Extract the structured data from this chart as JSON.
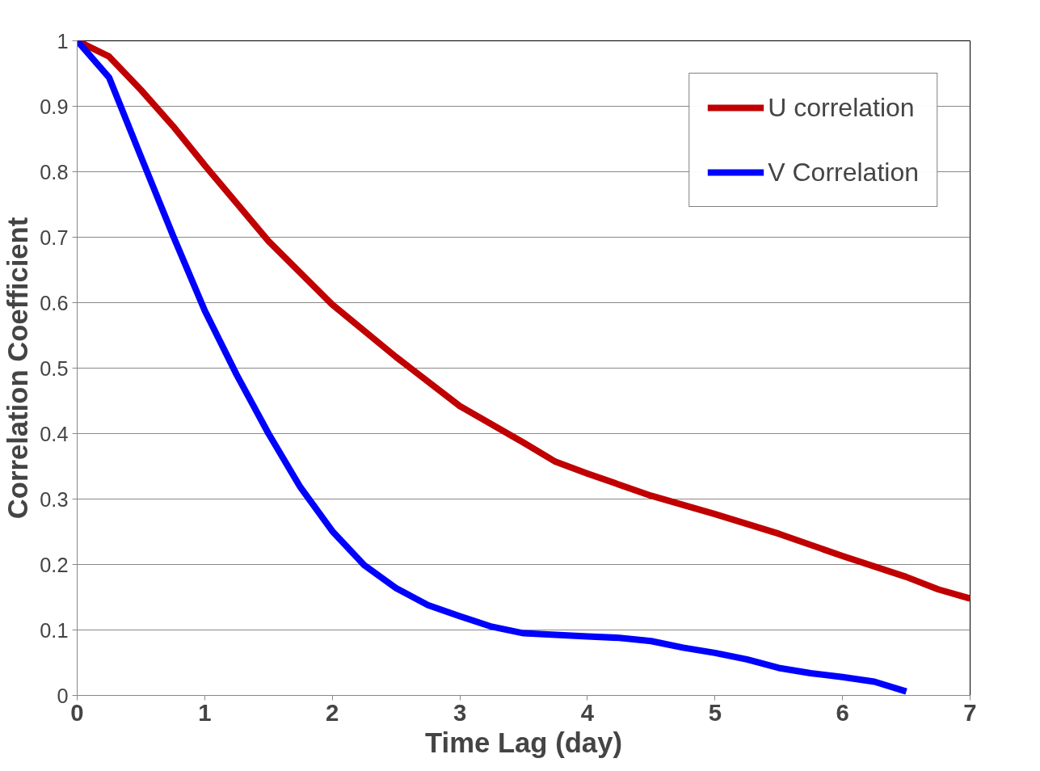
{
  "chart_data": {
    "type": "line",
    "xlabel": "Time Lag (day)",
    "ylabel": "Correlation Coefficient",
    "xlim": [
      0,
      7
    ],
    "xticks": [
      0,
      1,
      2,
      3,
      4,
      5,
      6,
      7
    ],
    "ylim": [
      0,
      1
    ],
    "yticks": [
      0,
      0.1,
      0.2,
      0.3,
      0.4,
      0.5,
      0.6,
      0.7,
      0.8,
      0.9,
      1
    ],
    "grid": "y",
    "legend": "top right",
    "marker": "none",
    "line_style": "solid",
    "series": [
      {
        "name": "U correlation",
        "color": "#c00000",
        "x": [
          0,
          0.25,
          0.5,
          0.75,
          1,
          1.5,
          2,
          2.5,
          3,
          3.5,
          3.75,
          4,
          4.5,
          5,
          5.5,
          6,
          6.5,
          6.75,
          7
        ],
        "values": [
          1.0,
          0.976,
          0.925,
          0.87,
          0.81,
          0.694,
          0.597,
          0.517,
          0.442,
          0.386,
          0.357,
          0.339,
          0.305,
          0.277,
          0.247,
          0.213,
          0.181,
          0.162,
          0.148
        ]
      },
      {
        "name": "V Correlation",
        "color": "#0000ff",
        "x": [
          0,
          0.25,
          0.5,
          0.75,
          1,
          1.25,
          1.5,
          1.75,
          2,
          2.25,
          2.5,
          2.75,
          3,
          3.25,
          3.5,
          4,
          4.25,
          4.5,
          4.75,
          5,
          5.25,
          5.5,
          5.75,
          6,
          6.25,
          6.5
        ],
        "values": [
          1.0,
          0.944,
          0.823,
          0.703,
          0.588,
          0.49,
          0.4,
          0.318,
          0.251,
          0.199,
          0.164,
          0.138,
          0.121,
          0.105,
          0.095,
          0.09,
          0.088,
          0.083,
          0.073,
          0.065,
          0.055,
          0.042,
          0.034,
          0.028,
          0.021,
          0.006
        ]
      }
    ]
  }
}
